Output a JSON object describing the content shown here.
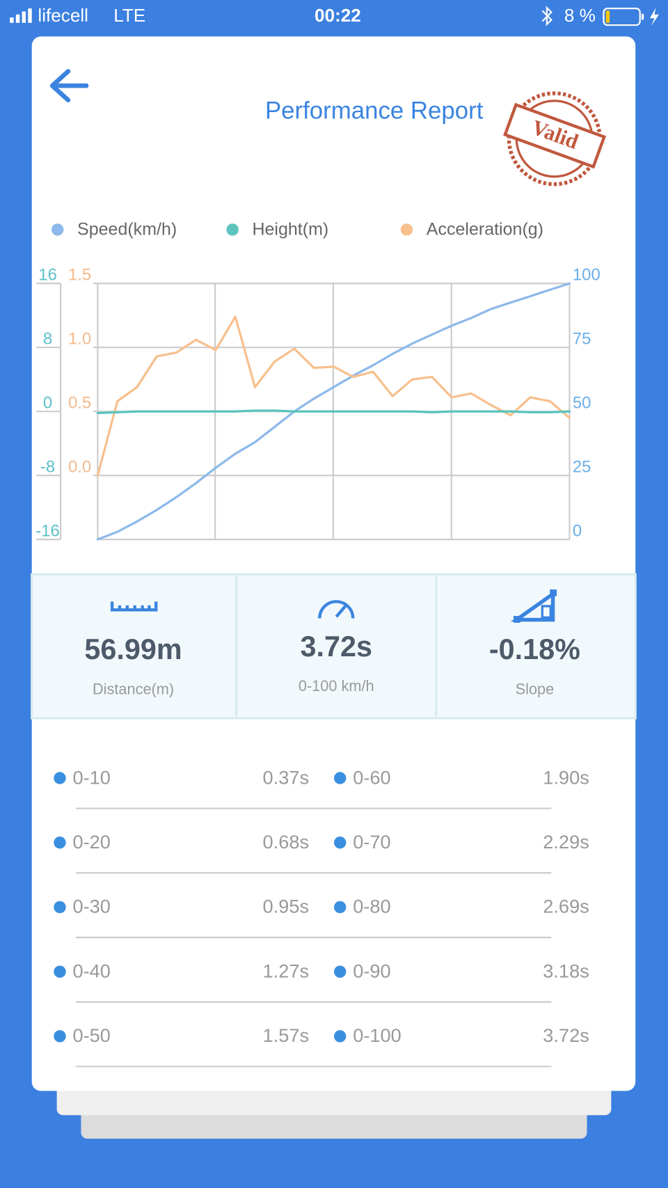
{
  "status_bar": {
    "carrier": "lifecell",
    "network": "LTE",
    "time": "00:22",
    "battery": "8 %"
  },
  "header": {
    "title": "Performance Report",
    "stamp": "Valid"
  },
  "chart_data": {
    "type": "line",
    "grid": true,
    "series": [
      {
        "name": "Speed(km/h)",
        "color": "#8db9ea",
        "axis": "y2",
        "values": [
          0,
          3,
          7,
          11.5,
          16.5,
          22,
          28,
          33.5,
          38,
          44,
          50,
          55,
          59.5,
          64,
          68,
          72.5,
          76.5,
          80,
          83.5,
          86.5,
          90,
          92.5,
          95,
          97.5,
          100
        ]
      },
      {
        "name": "Height(m)",
        "color": "#5cc3bd",
        "axis": "y",
        "values": [
          -0.2,
          -0.1,
          0,
          0,
          0,
          0,
          0,
          0,
          0.1,
          0.1,
          0,
          0,
          0,
          0,
          0,
          0,
          0,
          -0.1,
          0,
          0,
          0,
          0,
          -0.1,
          -0.1,
          0
        ]
      },
      {
        "name": "Acceleration(g)",
        "color": "#f7c08e",
        "axis": "y3",
        "values": [
          0.0,
          0.58,
          0.69,
          0.93,
          0.96,
          1.06,
          0.98,
          1.24,
          0.69,
          0.89,
          0.99,
          0.84,
          0.85,
          0.77,
          0.81,
          0.62,
          0.75,
          0.77,
          0.61,
          0.64,
          0.55,
          0.47,
          0.61,
          0.58,
          0.45
        ]
      }
    ],
    "ylim": [
      -16,
      16
    ],
    "yticks": [
      16,
      8,
      0,
      -8,
      -16
    ],
    "y3lim": [
      -0.5,
      1.5
    ],
    "y3ticks": [
      {
        "value": 0,
        "label": "0.0"
      },
      0.5,
      {
        "value": 1,
        "label": "1.0"
      },
      1.5
    ],
    "y2lim": [
      0,
      100
    ],
    "y2ticks": [
      0,
      25,
      50,
      75,
      100
    ]
  },
  "stats": [
    {
      "value": "56.99m",
      "label": "Distance(m)"
    },
    {
      "value": "3.72s",
      "label": "0-100 km/h"
    },
    {
      "value": "-0.18%",
      "label": "Slope"
    }
  ],
  "splits": [
    {
      "label": "0-10",
      "time": "0.37s"
    },
    {
      "label": "0-20",
      "time": "0.68s"
    },
    {
      "label": "0-30",
      "time": "0.95s"
    },
    {
      "label": "0-40",
      "time": "1.27s"
    },
    {
      "label": "0-50",
      "time": "1.57s"
    },
    {
      "label": "0-60",
      "time": "1.90s"
    },
    {
      "label": "0-70",
      "time": "2.29s"
    },
    {
      "label": "0-80",
      "time": "2.69s"
    },
    {
      "label": "0-90",
      "time": "3.18s"
    },
    {
      "label": "0-100",
      "time": "3.72s"
    }
  ]
}
